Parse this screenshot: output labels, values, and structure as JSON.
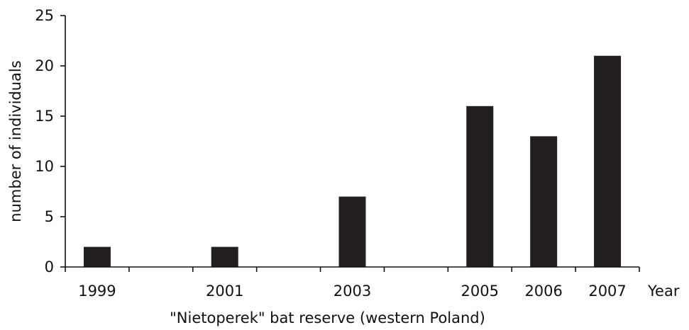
{
  "chart_data": {
    "type": "bar",
    "categories": [
      "1999",
      "2000",
      "2001",
      "2002",
      "2003",
      "2004",
      "2005",
      "2006",
      "2007"
    ],
    "category_labels": [
      "1999",
      "",
      "2001",
      "",
      "2003",
      "",
      "2005",
      "2006",
      "2007"
    ],
    "values": [
      2,
      0,
      2,
      0,
      7,
      0,
      16,
      13,
      21
    ],
    "title": "",
    "xlabel": "\"Nietoperek\" bat reserve (western Poland)",
    "x_axis_end_label": "Year",
    "ylabel": "number of individuals",
    "ylim": [
      0,
      25
    ],
    "yticks": [
      0,
      5,
      10,
      15,
      20,
      25
    ],
    "grid": false,
    "legend": "none",
    "bar_color": "#231f20"
  }
}
